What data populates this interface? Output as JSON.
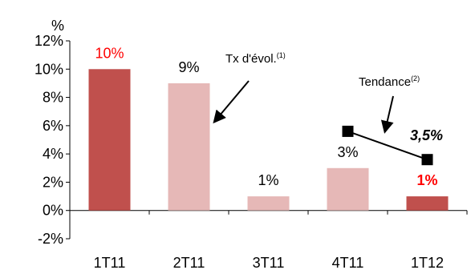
{
  "chart_data": {
    "type": "bar",
    "ylabel": "%",
    "ylim": [
      -2,
      12
    ],
    "yticks": [
      -2,
      0,
      2,
      4,
      6,
      8,
      10,
      12
    ],
    "ytick_labels": [
      "-2%",
      "0%",
      "2%",
      "4%",
      "6%",
      "8%",
      "10%",
      "12%"
    ],
    "categories": [
      "1T11",
      "2T11",
      "3T11",
      "4T11",
      "1T12"
    ],
    "values": [
      10,
      9,
      1,
      3,
      1
    ],
    "value_labels": [
      "10%",
      "9%",
      "1%",
      "3%",
      "1%"
    ],
    "bar_colors": [
      "#c0504d",
      "#e6b8b7",
      "#e6b8b7",
      "#e6b8b7",
      "#c0504d"
    ],
    "value_label_colors": [
      "#ff0000",
      "#000000",
      "#000000",
      "#000000",
      "#ff0000"
    ],
    "trend": {
      "points": [
        {
          "category": "4T11",
          "value": 5.6
        },
        {
          "category": "1T12",
          "value": 3.6
        }
      ],
      "label": "3,5%",
      "color": "#000000"
    },
    "annotations": [
      {
        "name": "annotation-tx-evol",
        "text": "Tx d'évol.",
        "sup": "(1)"
      },
      {
        "name": "annotation-tendance",
        "text": "Tendance",
        "sup": "(2)"
      }
    ],
    "grid": false
  }
}
